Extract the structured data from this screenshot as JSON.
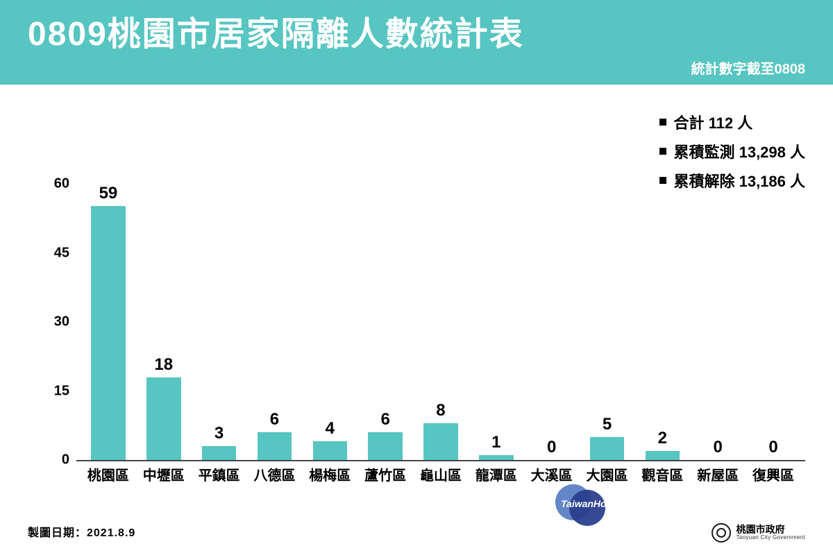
{
  "header": {
    "title": "0809桃園市居家隔離人數統計表",
    "subtitle": "統計數字截至0808",
    "title_fontsize": 48,
    "subtitle_fontsize": 20,
    "bg_color": "#57c5c1",
    "text_color": "#ffffff"
  },
  "legend": {
    "fontsize": 22,
    "marker_color": "#000000",
    "items": [
      "合計 112 人",
      "累積監測 13,298 人",
      "累積解除 13,186 人"
    ]
  },
  "chart": {
    "type": "bar",
    "categories": [
      "桃園區",
      "中壢區",
      "平鎮區",
      "八德區",
      "楊梅區",
      "蘆竹區",
      "龜山區",
      "龍潭區",
      "大溪區",
      "大園區",
      "觀音區",
      "新屋區",
      "復興區"
    ],
    "values": [
      59,
      18,
      3,
      6,
      4,
      6,
      8,
      1,
      0,
      5,
      2,
      0,
      0
    ],
    "bar_color": "#57c5c1",
    "value_label_fontsize": 24,
    "xlabel_fontsize": 20,
    "ylabel_fontsize": 20,
    "ylim_max": 60,
    "ytick_step": 15,
    "yticks": [
      0,
      15,
      30,
      45,
      60
    ],
    "axis_color": "#444444",
    "background_color": "#ffffff",
    "bar_width_ratio": 0.62
  },
  "footer": {
    "date_label": "製圖日期：2021.8.9",
    "gov_name_zh": "桃園市政府",
    "gov_name_en": "Taoyuan City Government"
  },
  "watermark": {
    "text": "TaiwanHot",
    "color_a": "#5a7fc4",
    "color_b": "#2a3f8f"
  }
}
